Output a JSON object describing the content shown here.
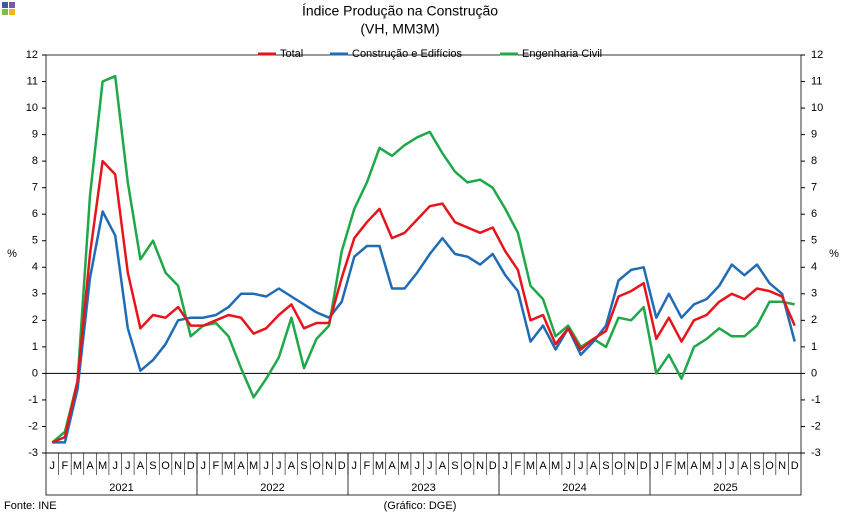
{
  "chart_data": {
    "type": "line",
    "title": "Índice Produção na Construção",
    "subtitle": "(VH, MM3M)",
    "y_label": "%",
    "source": "Fonte: INE",
    "credit": "(Gráfico: DGE)",
    "categories": [
      "J",
      "F",
      "M",
      "A",
      "M",
      "J",
      "J",
      "A",
      "S",
      "O",
      "N",
      "D",
      "J",
      "F",
      "M",
      "A",
      "M",
      "J",
      "J",
      "A",
      "S",
      "O",
      "N",
      "D",
      "J",
      "F",
      "M",
      "A",
      "M",
      "J",
      "J",
      "A",
      "S",
      "O",
      "N",
      "D",
      "J",
      "F",
      "M",
      "A",
      "M",
      "J",
      "J",
      "A",
      "S",
      "O",
      "N",
      "D",
      "J",
      "F",
      "M",
      "A",
      "M",
      "J",
      "J",
      "A",
      "S",
      "O",
      "N",
      "D"
    ],
    "years": [
      "2021",
      "2022",
      "2023",
      "2024",
      "2025"
    ],
    "ylim": [
      -3,
      12
    ],
    "yticks": [
      -3,
      -2,
      -1,
      0,
      1,
      2,
      3,
      4,
      5,
      6,
      7,
      8,
      9,
      10,
      11,
      12
    ],
    "grid": false,
    "series": [
      {
        "name": "Total",
        "color": "#e8141b",
        "values": [
          -2.6,
          -2.4,
          -0.3,
          4.5,
          8.0,
          7.5,
          3.8,
          1.7,
          2.2,
          2.1,
          2.5,
          1.8,
          1.8,
          2.0,
          2.2,
          2.1,
          1.5,
          1.7,
          2.2,
          2.6,
          1.7,
          1.9,
          1.9,
          3.6,
          5.1,
          5.7,
          6.2,
          5.1,
          5.3,
          5.8,
          6.3,
          6.4,
          5.7,
          5.5,
          5.3,
          5.5,
          4.6,
          3.9,
          2.0,
          2.2,
          1.1,
          1.7,
          0.9,
          1.3,
          1.6,
          2.9,
          3.1,
          3.4,
          1.3,
          2.1,
          1.2,
          2.0,
          2.2,
          2.7,
          3.0,
          2.8,
          3.2,
          3.1,
          2.9,
          1.8
        ]
      },
      {
        "name": "Construção e Edifícios",
        "color": "#1f6cb5",
        "values": [
          -2.6,
          -2.6,
          -0.6,
          3.6,
          6.1,
          5.2,
          1.7,
          0.1,
          0.5,
          1.1,
          2.0,
          2.1,
          2.1,
          2.2,
          2.5,
          3.0,
          3.0,
          2.9,
          3.2,
          2.9,
          2.6,
          2.3,
          2.1,
          2.7,
          4.4,
          4.8,
          4.8,
          3.2,
          3.2,
          3.8,
          4.5,
          5.1,
          4.5,
          4.4,
          4.1,
          4.5,
          3.7,
          3.1,
          1.2,
          1.8,
          0.9,
          1.7,
          0.7,
          1.2,
          1.8,
          3.5,
          3.9,
          4.0,
          2.1,
          3.0,
          2.1,
          2.6,
          2.8,
          3.3,
          4.1,
          3.7,
          4.1,
          3.4,
          3.0,
          1.2
        ]
      },
      {
        "name": "Engenharia Civil",
        "color": "#1fa84a",
        "values": [
          -2.6,
          -2.2,
          -0.3,
          6.7,
          11.0,
          11.2,
          7.2,
          4.3,
          5.0,
          3.8,
          3.3,
          1.4,
          1.8,
          1.9,
          1.4,
          0.2,
          -0.9,
          -0.2,
          0.6,
          2.1,
          0.2,
          1.3,
          1.8,
          4.6,
          6.2,
          7.2,
          8.5,
          8.2,
          8.6,
          8.9,
          9.1,
          8.3,
          7.6,
          7.2,
          7.3,
          7.0,
          6.2,
          5.3,
          3.3,
          2.8,
          1.4,
          1.8,
          1.0,
          1.3,
          1.0,
          2.1,
          2.0,
          2.5,
          0.0,
          0.7,
          -0.2,
          1.0,
          1.3,
          1.7,
          1.4,
          1.4,
          1.8,
          2.7,
          2.7,
          2.6
        ]
      }
    ]
  }
}
